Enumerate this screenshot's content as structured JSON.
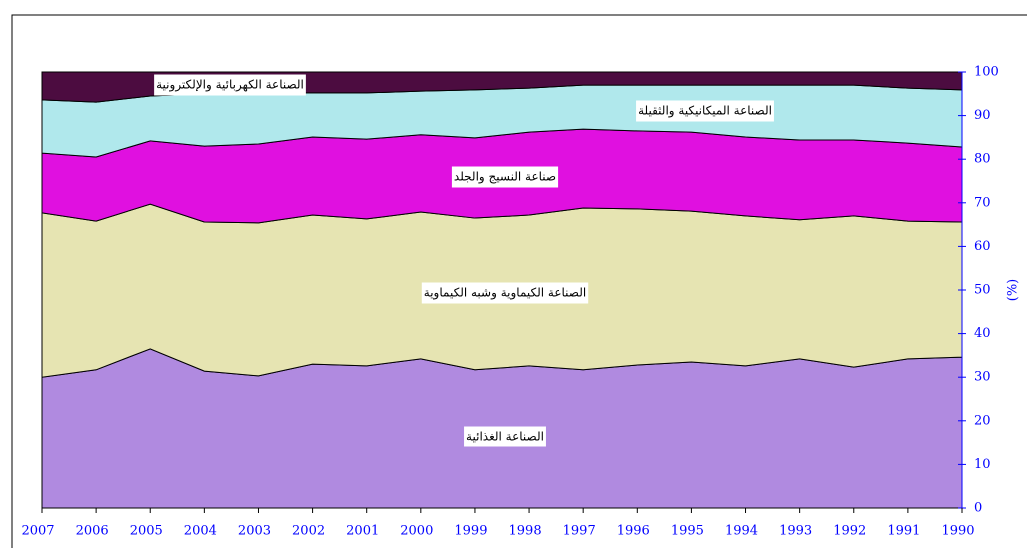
{
  "chart_data": {
    "type": "stacked_area",
    "categories": [
      "2007",
      "2006",
      "2005",
      "2004",
      "2003",
      "2002",
      "2001",
      "2000",
      "1999",
      "1998",
      "1997",
      "1996",
      "1995",
      "1994",
      "1993",
      "1992",
      "1991",
      "1990"
    ],
    "y_label": "(%)",
    "ylim": [
      0,
      100
    ],
    "yticks": [
      0,
      10,
      20,
      30,
      40,
      50,
      60,
      70,
      80,
      90,
      100
    ],
    "series": [
      {
        "name": "الصناعة الغذائية",
        "color": "#b08ae0",
        "values": [
          30,
          31.7,
          36.5,
          31.4,
          30.3,
          33,
          32.6,
          34.2,
          31.7,
          32.6,
          31.7,
          32.8,
          33.5,
          32.6,
          34.2,
          32.3,
          34.2,
          34.6
        ]
      },
      {
        "name": "الصناعة الكيماوية وشبه الكيماوية",
        "color": "#e6e4b2",
        "values": [
          37.7,
          34.1,
          33.2,
          34.2,
          35.1,
          34.2,
          33.7,
          33.7,
          34.8,
          34.6,
          37.1,
          35.8,
          34.6,
          34.4,
          31.9,
          34.7,
          31.6,
          31.0
        ]
      },
      {
        "name": "صناعة النسيج والجلد",
        "color": "#e010e0",
        "values": [
          13.7,
          14.7,
          14.5,
          17.4,
          18.1,
          17.9,
          18.3,
          17.7,
          18.4,
          19.0,
          18.1,
          17.9,
          18.1,
          18.1,
          18.3,
          17.4,
          17.9,
          17.2
        ]
      },
      {
        "name": "الصناعة الميكانيكية والثقيلة",
        "color": "#b0e8ec",
        "values": [
          12.2,
          12.6,
          10.3,
          12.0,
          11.7,
          10.1,
          10.6,
          10.0,
          11.0,
          10.1,
          10.1,
          10.5,
          10.8,
          11.9,
          12.6,
          12.6,
          12.6,
          13.1
        ]
      },
      {
        "name": "الصناعة الكهربائية والإلكترونية",
        "color": "#4c0c40",
        "values": [
          6.4,
          6.9,
          5.5,
          5.0,
          4.8,
          4.8,
          4.8,
          4.4,
          4.1,
          3.7,
          3.0,
          3.0,
          3.0,
          3.0,
          3.0,
          3.0,
          3.7,
          4.1
        ]
      }
    ]
  }
}
